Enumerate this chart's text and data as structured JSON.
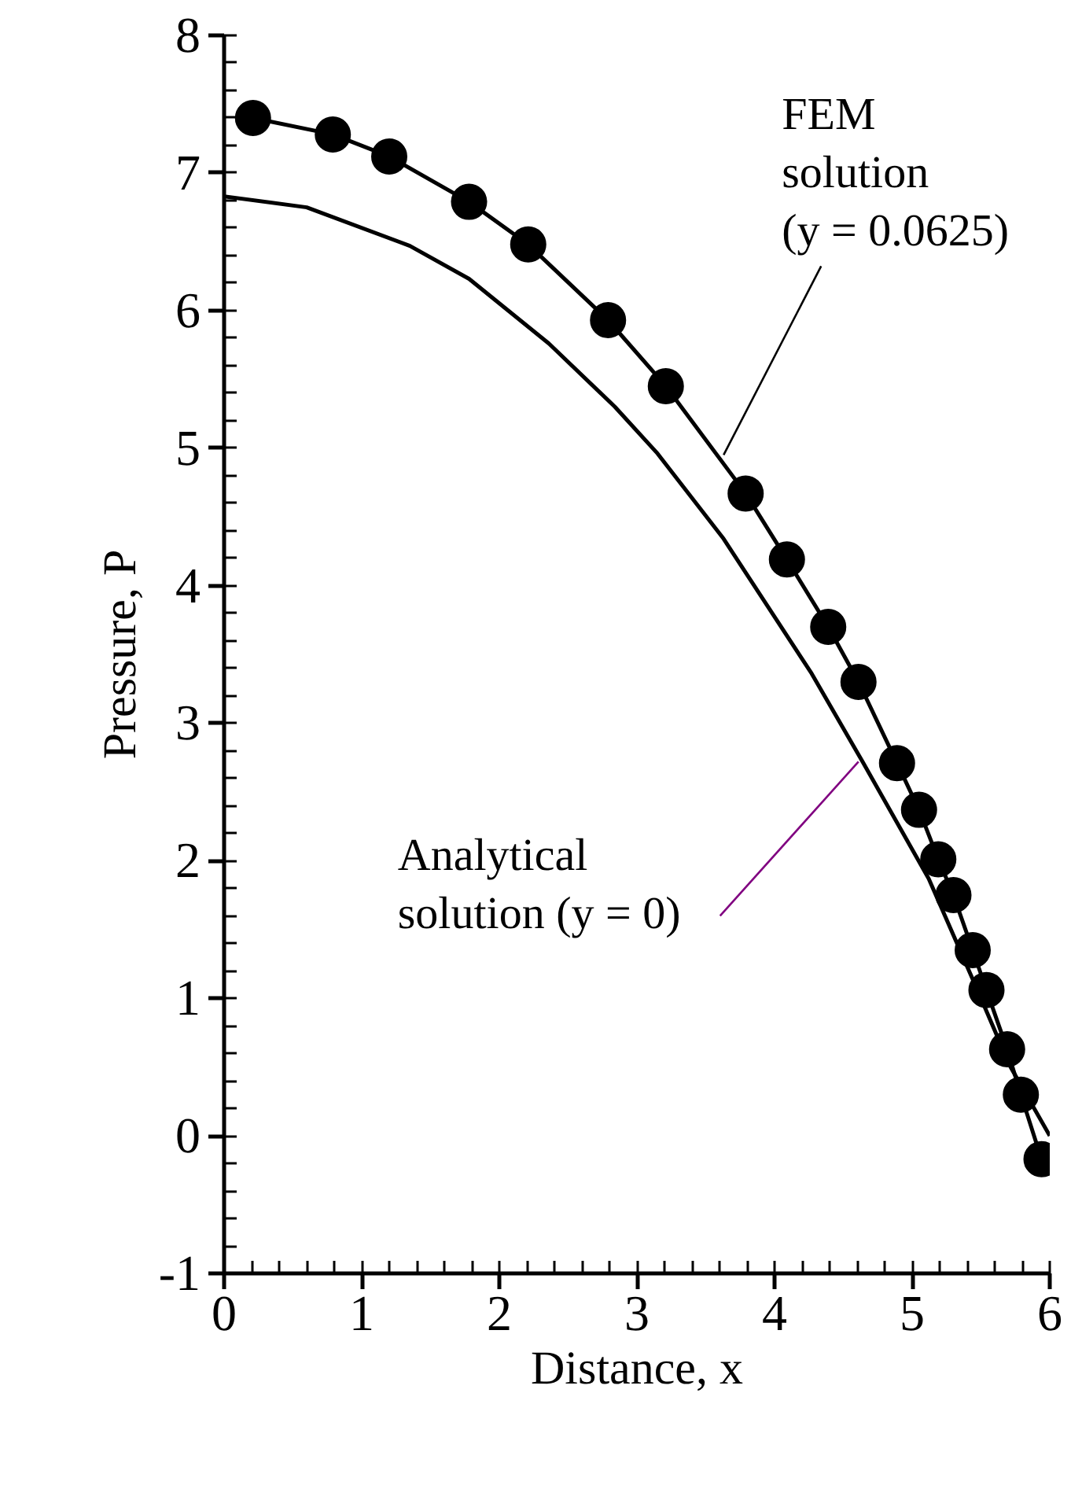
{
  "chart_data": {
    "type": "line",
    "xlabel": "Distance, x",
    "ylabel": "Pressure, P",
    "xlim": [
      0,
      6
    ],
    "ylim": [
      -1,
      8
    ],
    "xticks": [
      0,
      1,
      2,
      3,
      4,
      5,
      6
    ],
    "yticks": [
      -1,
      0,
      1,
      2,
      3,
      4,
      5,
      6,
      7,
      8
    ],
    "grid": false,
    "series": [
      {
        "marker": "none",
        "color": "#000000",
        "x": [
          0,
          0.6,
          1.35,
          1.78,
          2.36,
          2.84,
          3.15,
          3.63,
          4.27,
          4.64,
          5.12,
          5.47,
          5.71,
          6.0
        ],
        "values": [
          6.83,
          6.75,
          6.47,
          6.23,
          5.76,
          5.3,
          4.96,
          4.34,
          3.36,
          2.72,
          1.87,
          1.07,
          0.51,
          0.0
        ]
      },
      {
        "marker": "circle",
        "color": "#000000",
        "x": [
          0.21,
          0.79,
          1.2,
          1.78,
          2.21,
          2.79,
          3.21,
          3.79,
          4.09,
          4.39,
          4.61,
          4.89,
          5.05,
          5.19,
          5.3,
          5.44,
          5.54,
          5.69,
          5.79,
          5.94
        ],
        "values": [
          7.4,
          7.28,
          7.12,
          6.79,
          6.48,
          5.93,
          5.45,
          4.67,
          4.19,
          3.7,
          3.3,
          2.71,
          2.37,
          2.01,
          1.75,
          1.35,
          1.06,
          0.63,
          0.3,
          -0.17
        ]
      }
    ],
    "annotations": [
      {
        "text": "FEM\nsolution\n(y = 0.0625)",
        "x": 3.63,
        "y": 4.95
      },
      {
        "text": "Analytical\nsolution (y = 0)",
        "x": 4.61,
        "y": 2.72
      }
    ]
  }
}
